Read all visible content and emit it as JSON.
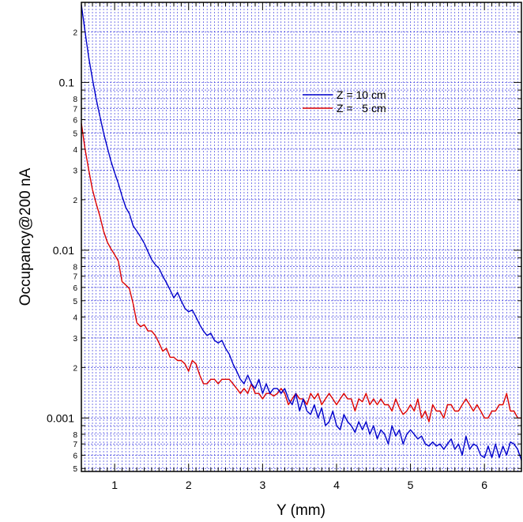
{
  "chart_data": {
    "type": "line",
    "xlabel": "Y (mm)",
    "ylabel": "Occupancy@200 nA",
    "xlim": [
      0.55,
      6.5
    ],
    "ylim": [
      0.00048,
      0.3
    ],
    "yscale": "log",
    "grid": true,
    "legend_position": "top-center",
    "x_ticks": [
      "1",
      "2",
      "3",
      "4",
      "5",
      "6"
    ],
    "y_major_ticks": [
      "0.1",
      "0.01",
      "0.001"
    ],
    "y_minor_ticks_per_decade": [
      "8",
      "7",
      "6",
      "5",
      "4",
      "3",
      "2"
    ],
    "series": [
      {
        "name": "Z = 10 cm",
        "color": "#0000cc",
        "x": [
          0.55,
          0.6,
          0.65,
          0.7,
          0.75,
          0.8,
          0.85,
          0.9,
          0.95,
          1.0,
          1.05,
          1.1,
          1.15,
          1.2,
          1.25,
          1.3,
          1.35,
          1.4,
          1.45,
          1.5,
          1.55,
          1.6,
          1.65,
          1.7,
          1.75,
          1.8,
          1.85,
          1.9,
          1.95,
          2.0,
          2.05,
          2.1,
          2.15,
          2.2,
          2.25,
          2.3,
          2.35,
          2.4,
          2.45,
          2.5,
          2.55,
          2.6,
          2.65,
          2.7,
          2.75,
          2.8,
          2.85,
          2.9,
          2.95,
          3.0,
          3.05,
          3.1,
          3.15,
          3.2,
          3.25,
          3.3,
          3.35,
          3.4,
          3.45,
          3.5,
          3.55,
          3.6,
          3.65,
          3.7,
          3.75,
          3.8,
          3.85,
          3.9,
          3.95,
          4.0,
          4.05,
          4.1,
          4.15,
          4.2,
          4.25,
          4.3,
          4.35,
          4.4,
          4.45,
          4.5,
          4.55,
          4.6,
          4.65,
          4.7,
          4.75,
          4.8,
          4.85,
          4.9,
          4.95,
          5.0,
          5.05,
          5.1,
          5.15,
          5.2,
          5.25,
          5.3,
          5.35,
          5.4,
          5.45,
          5.5,
          5.55,
          5.6,
          5.65,
          5.7,
          5.75,
          5.8,
          5.85,
          5.9,
          5.95,
          6.0,
          6.05,
          6.1,
          6.15,
          6.2,
          6.25,
          6.3,
          6.35,
          6.4,
          6.45,
          6.5
        ],
        "values": [
          0.29,
          0.2,
          0.14,
          0.105,
          0.08,
          0.063,
          0.05,
          0.041,
          0.034,
          0.029,
          0.025,
          0.021,
          0.018,
          0.0165,
          0.014,
          0.013,
          0.012,
          0.011,
          0.0098,
          0.0088,
          0.0082,
          0.0078,
          0.007,
          0.0064,
          0.0058,
          0.0052,
          0.0056,
          0.005,
          0.0045,
          0.0043,
          0.0044,
          0.004,
          0.0036,
          0.0033,
          0.0031,
          0.0032,
          0.0029,
          0.0028,
          0.0029,
          0.0026,
          0.0024,
          0.0021,
          0.0019,
          0.0017,
          0.0016,
          0.0018,
          0.0016,
          0.0015,
          0.0017,
          0.0014,
          0.0016,
          0.0014,
          0.0015,
          0.0015,
          0.0014,
          0.0015,
          0.0013,
          0.0012,
          0.0014,
          0.0011,
          0.0013,
          0.0011,
          0.00105,
          0.0012,
          0.001,
          0.00115,
          0.0009,
          0.00095,
          0.0011,
          0.0009,
          0.00085,
          0.00105,
          0.00095,
          0.0009,
          0.00082,
          0.00095,
          0.00085,
          0.00095,
          0.0008,
          0.0009,
          0.00075,
          0.00085,
          0.0008,
          0.0007,
          0.0009,
          0.00078,
          0.00085,
          0.0007,
          0.0008,
          0.00085,
          0.0008,
          0.00075,
          0.00078,
          0.0007,
          0.00068,
          0.00072,
          0.00068,
          0.0007,
          0.00065,
          0.0007,
          0.00075,
          0.00065,
          0.0007,
          0.0006,
          0.00078,
          0.00065,
          0.0007,
          0.00068,
          0.0006,
          0.00058,
          0.00068,
          0.00058,
          0.0007,
          0.00058,
          0.00068,
          0.0006,
          0.00072,
          0.0007,
          0.00065,
          0.00056
        ]
      },
      {
        "name": "Z =   5 cm",
        "color": "#dd0000",
        "x": [
          0.55,
          0.6,
          0.65,
          0.7,
          0.75,
          0.8,
          0.85,
          0.9,
          0.95,
          1.0,
          1.05,
          1.1,
          1.15,
          1.2,
          1.25,
          1.3,
          1.35,
          1.4,
          1.45,
          1.5,
          1.55,
          1.6,
          1.65,
          1.7,
          1.75,
          1.8,
          1.85,
          1.9,
          1.95,
          2.0,
          2.05,
          2.1,
          2.15,
          2.2,
          2.25,
          2.3,
          2.35,
          2.4,
          2.45,
          2.5,
          2.55,
          2.6,
          2.65,
          2.7,
          2.75,
          2.8,
          2.85,
          2.9,
          2.95,
          3.0,
          3.05,
          3.1,
          3.15,
          3.2,
          3.25,
          3.3,
          3.35,
          3.4,
          3.45,
          3.5,
          3.55,
          3.6,
          3.65,
          3.7,
          3.75,
          3.8,
          3.85,
          3.9,
          3.95,
          4.0,
          4.05,
          4.1,
          4.15,
          4.2,
          4.25,
          4.3,
          4.35,
          4.4,
          4.45,
          4.5,
          4.55,
          4.6,
          4.65,
          4.7,
          4.75,
          4.8,
          4.85,
          4.9,
          4.95,
          5.0,
          5.05,
          5.1,
          5.15,
          5.2,
          5.25,
          5.3,
          5.35,
          5.4,
          5.45,
          5.5,
          5.55,
          5.6,
          5.65,
          5.7,
          5.75,
          5.8,
          5.85,
          5.9,
          5.95,
          6.0,
          6.05,
          6.1,
          6.15,
          6.2,
          6.25,
          6.3,
          6.35,
          6.4,
          6.45,
          6.5
        ],
        "values": [
          0.057,
          0.04,
          0.03,
          0.023,
          0.019,
          0.016,
          0.013,
          0.0112,
          0.0102,
          0.0094,
          0.0086,
          0.0065,
          0.0062,
          0.0059,
          0.0048,
          0.0037,
          0.0035,
          0.0036,
          0.0033,
          0.0033,
          0.0031,
          0.0028,
          0.0025,
          0.0026,
          0.0023,
          0.0023,
          0.0022,
          0.0022,
          0.0021,
          0.0019,
          0.0022,
          0.0021,
          0.0018,
          0.0016,
          0.0016,
          0.0017,
          0.0017,
          0.0016,
          0.0017,
          0.0017,
          0.0017,
          0.0016,
          0.0015,
          0.0014,
          0.0015,
          0.0014,
          0.0016,
          0.0014,
          0.0014,
          0.0013,
          0.0014,
          0.0014,
          0.00135,
          0.0014,
          0.0015,
          0.0014,
          0.0012,
          0.0013,
          0.0014,
          0.0013,
          0.0013,
          0.0012,
          0.0014,
          0.0013,
          0.0014,
          0.0012,
          0.0013,
          0.0014,
          0.0013,
          0.0012,
          0.0013,
          0.0014,
          0.0013,
          0.0013,
          0.0011,
          0.0013,
          0.00125,
          0.0014,
          0.0012,
          0.0013,
          0.0012,
          0.0013,
          0.0012,
          0.0012,
          0.0011,
          0.0013,
          0.00115,
          0.00105,
          0.0011,
          0.0012,
          0.0011,
          0.0013,
          0.001,
          0.0011,
          0.00095,
          0.0012,
          0.0011,
          0.0011,
          0.001,
          0.0012,
          0.0012,
          0.0011,
          0.0011,
          0.0012,
          0.0013,
          0.0012,
          0.0011,
          0.0012,
          0.0011,
          0.001,
          0.001,
          0.0011,
          0.0011,
          0.0012,
          0.0012,
          0.0014,
          0.0011,
          0.0011,
          0.001,
          0.001
        ]
      }
    ]
  }
}
